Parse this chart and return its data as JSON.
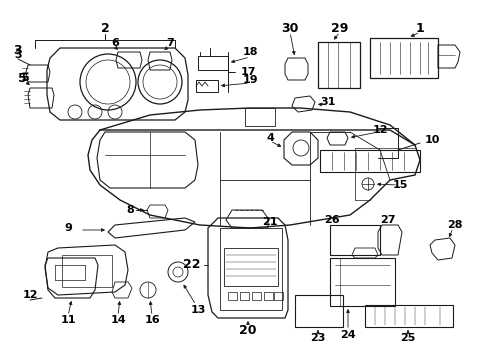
{
  "bg_color": "#ffffff",
  "line_color": "#1a1a1a",
  "text_color": "#000000",
  "fig_width": 4.89,
  "fig_height": 3.6,
  "dpi": 100
}
